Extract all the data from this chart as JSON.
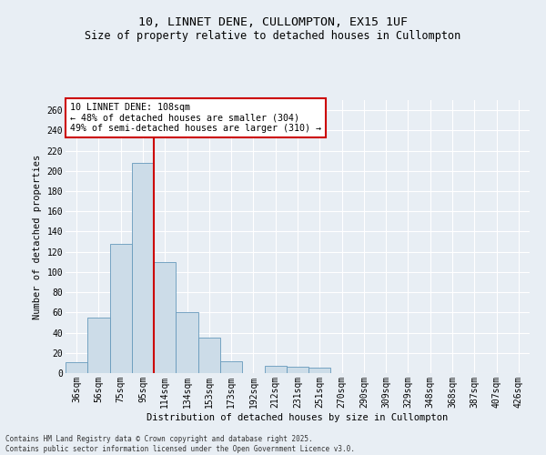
{
  "title_line1": "10, LINNET DENE, CULLOMPTON, EX15 1UF",
  "title_line2": "Size of property relative to detached houses in Cullompton",
  "xlabel": "Distribution of detached houses by size in Cullompton",
  "ylabel": "Number of detached properties",
  "bar_color": "#ccdce8",
  "bar_edge_color": "#6699bb",
  "categories": [
    "36sqm",
    "56sqm",
    "75sqm",
    "95sqm",
    "114sqm",
    "134sqm",
    "153sqm",
    "173sqm",
    "192sqm",
    "212sqm",
    "231sqm",
    "251sqm",
    "270sqm",
    "290sqm",
    "309sqm",
    "329sqm",
    "348sqm",
    "368sqm",
    "387sqm",
    "407sqm",
    "426sqm"
  ],
  "values": [
    11,
    55,
    128,
    208,
    110,
    60,
    35,
    12,
    0,
    7,
    6,
    5,
    0,
    0,
    0,
    0,
    0,
    0,
    0,
    0,
    0
  ],
  "vline_x": 3.5,
  "vline_color": "#cc0000",
  "annotation_text": "10 LINNET DENE: 108sqm\n← 48% of detached houses are smaller (304)\n49% of semi-detached houses are larger (310) →",
  "annotation_box_color": "#ffffff",
  "annotation_box_edge": "#cc0000",
  "footer_text": "Contains HM Land Registry data © Crown copyright and database right 2025.\nContains public sector information licensed under the Open Government Licence v3.0.",
  "ylim": [
    0,
    270
  ],
  "yticks": [
    0,
    20,
    40,
    60,
    80,
    100,
    120,
    140,
    160,
    180,
    200,
    220,
    240,
    260
  ],
  "background_color": "#e8eef4",
  "grid_color": "#ffffff",
  "title1_fontsize": 9.5,
  "title2_fontsize": 8.5,
  "axis_label_fontsize": 7.5,
  "tick_fontsize": 7,
  "footer_fontsize": 5.5,
  "annot_fontsize": 7.2
}
